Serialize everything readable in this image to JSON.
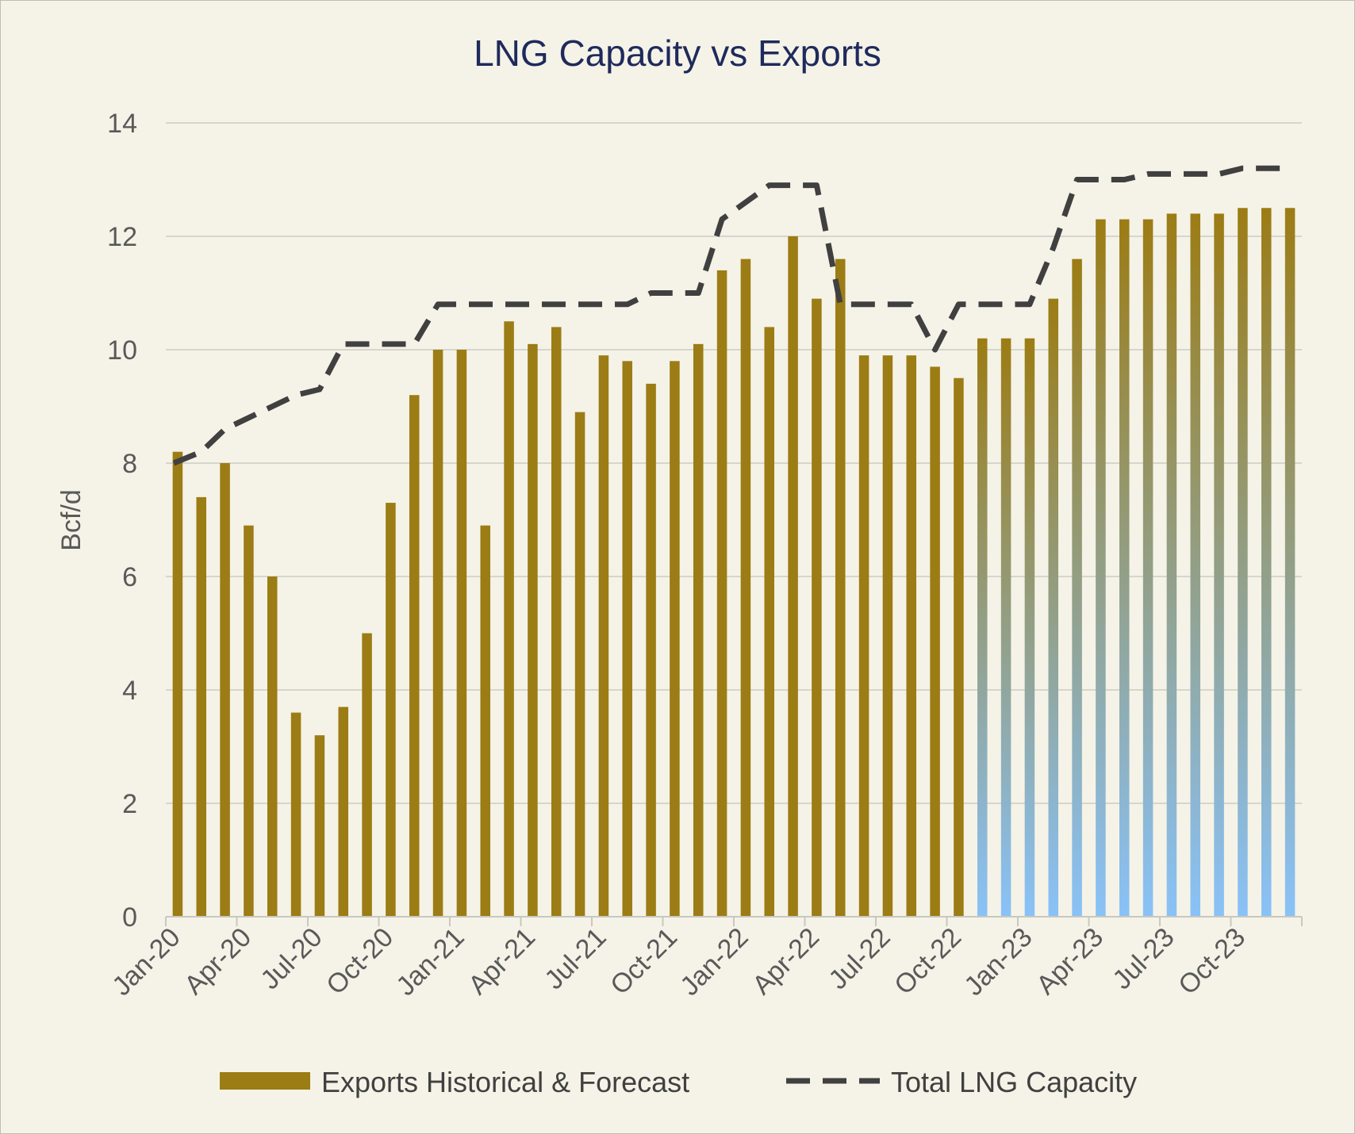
{
  "chart_data": {
    "type": "bar",
    "title": "LNG Capacity vs Exports",
    "ylabel": "Bcf/d",
    "xlabel": "",
    "ylim": [
      0,
      14
    ],
    "yticks": [
      0,
      2,
      4,
      6,
      8,
      10,
      12,
      14
    ],
    "grid": true,
    "legend_position": "bottom",
    "categories": [
      "Jan-20",
      "Feb-20",
      "Mar-20",
      "Apr-20",
      "May-20",
      "Jun-20",
      "Jul-20",
      "Aug-20",
      "Sep-20",
      "Oct-20",
      "Nov-20",
      "Dec-20",
      "Jan-21",
      "Feb-21",
      "Mar-21",
      "Apr-21",
      "May-21",
      "Jun-21",
      "Jul-21",
      "Aug-21",
      "Sep-21",
      "Oct-21",
      "Nov-21",
      "Dec-21",
      "Jan-22",
      "Feb-22",
      "Mar-22",
      "Apr-22",
      "May-22",
      "Jun-22",
      "Jul-22",
      "Aug-22",
      "Sep-22",
      "Oct-22",
      "Nov-22",
      "Dec-22",
      "Jan-23",
      "Feb-23",
      "Mar-23",
      "Apr-23",
      "May-23",
      "Jun-23",
      "Jul-23",
      "Aug-23",
      "Sep-23",
      "Oct-23",
      "Nov-23",
      "Dec-23"
    ],
    "tick_labels": [
      "Jan-20",
      "Apr-20",
      "Jul-20",
      "Oct-20",
      "Jan-21",
      "Apr-21",
      "Jul-21",
      "Oct-21",
      "Jan-22",
      "Apr-22",
      "Jul-22",
      "Oct-22",
      "Jan-23",
      "Apr-23",
      "Jul-23",
      "Oct-23"
    ],
    "series": [
      {
        "name": "Exports Historical & Forecast",
        "kind": "bar",
        "color": "#9c7c14",
        "forecast_color": "#89c2f8",
        "forecast_from_index": 34,
        "values": [
          8.2,
          7.4,
          8.0,
          6.9,
          6.0,
          3.6,
          3.2,
          3.7,
          5.0,
          7.3,
          9.2,
          10.0,
          10.0,
          6.9,
          10.5,
          10.1,
          10.4,
          8.9,
          9.9,
          9.8,
          9.4,
          9.8,
          10.1,
          11.4,
          11.6,
          10.4,
          12.0,
          10.9,
          11.6,
          9.9,
          9.9,
          9.9,
          9.7,
          9.5,
          10.2,
          10.2,
          10.2,
          10.9,
          11.6,
          12.3,
          12.3,
          12.3,
          12.4,
          12.4,
          12.4,
          12.5,
          12.5,
          12.5
        ]
      },
      {
        "name": "Total LNG Capacity",
        "kind": "line",
        "style": "dashed",
        "color": "#404040",
        "values": [
          8.0,
          8.2,
          8.6,
          8.8,
          9.0,
          9.2,
          9.3,
          10.1,
          10.1,
          10.1,
          10.1,
          10.8,
          10.8,
          10.8,
          10.8,
          10.8,
          10.8,
          10.8,
          10.8,
          10.8,
          11.0,
          11.0,
          11.0,
          12.3,
          12.6,
          12.9,
          12.9,
          12.9,
          10.8,
          10.8,
          10.8,
          10.8,
          10.0,
          10.8,
          10.8,
          10.8,
          10.8,
          11.8,
          13.0,
          13.0,
          13.0,
          13.1,
          13.1,
          13.1,
          13.1,
          13.2,
          13.2,
          13.2
        ]
      }
    ]
  }
}
